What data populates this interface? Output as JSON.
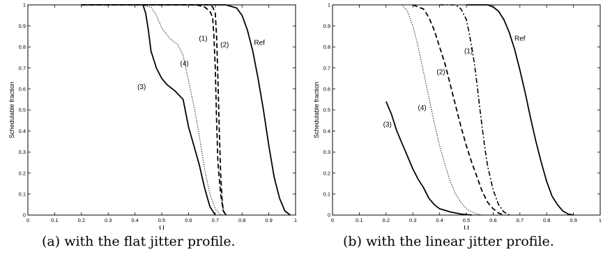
{
  "chart_data": [
    {
      "type": "line",
      "caption": "(a) with the flat jitter profile.",
      "xlabel": "U",
      "ylabel": "Schedulable fraction",
      "xlim": [
        0,
        1
      ],
      "ylim": [
        0,
        1
      ],
      "x_ticks": [
        "0",
        "0.1",
        "0.2",
        "0.3",
        "0.4",
        "0.5",
        "0.6",
        "0.7",
        "0.8",
        "0.9",
        "1"
      ],
      "y_ticks": [
        "0",
        "0.1",
        "0.2",
        "0.3",
        "0.4",
        "0.5",
        "0.6",
        "0.7",
        "0.8",
        "0.9",
        "1"
      ],
      "grid": false,
      "series": [
        {
          "name": "Ref",
          "style": "solid",
          "x": [
            0.2,
            0.74,
            0.78,
            0.8,
            0.82,
            0.84,
            0.86,
            0.88,
            0.9,
            0.92,
            0.94,
            0.96,
            0.98
          ],
          "y": [
            1,
            1,
            0.985,
            0.95,
            0.88,
            0.78,
            0.65,
            0.5,
            0.33,
            0.18,
            0.08,
            0.02,
            0
          ],
          "label": {
            "text": "Ref",
            "x": 0.865,
            "y": 0.81
          }
        },
        {
          "name": "(1)",
          "style": "dashed",
          "x": [
            0.2,
            0.63,
            0.66,
            0.68,
            0.69,
            0.695,
            0.7,
            0.705,
            0.71,
            0.72,
            0.73,
            0.74
          ],
          "y": [
            1,
            1,
            0.99,
            0.97,
            0.94,
            0.85,
            0.7,
            0.45,
            0.25,
            0.1,
            0.02,
            0
          ],
          "label": {
            "text": "(1)",
            "x": 0.655,
            "y": 0.83
          }
        },
        {
          "name": "(2)",
          "style": "dashed",
          "x": [
            0.2,
            0.68,
            0.69,
            0.7,
            0.705,
            0.71,
            0.715,
            0.72,
            0.725,
            0.73,
            0.74
          ],
          "y": [
            1,
            1,
            0.99,
            0.96,
            0.85,
            0.65,
            0.4,
            0.2,
            0.08,
            0.02,
            0
          ],
          "label": {
            "text": "(2)",
            "x": 0.735,
            "y": 0.8
          }
        },
        {
          "name": "(3)",
          "style": "solid",
          "x": [
            0.43,
            0.44,
            0.45,
            0.46,
            0.48,
            0.5,
            0.52,
            0.55,
            0.58,
            0.6,
            0.62,
            0.64,
            0.66,
            0.68,
            0.7
          ],
          "y": [
            1,
            0.96,
            0.88,
            0.78,
            0.7,
            0.65,
            0.62,
            0.59,
            0.55,
            0.42,
            0.33,
            0.24,
            0.13,
            0.04,
            0
          ],
          "label": {
            "text": "(3)",
            "x": 0.425,
            "y": 0.6
          }
        },
        {
          "name": "(4)",
          "style": "dotted",
          "x": [
            0.42,
            0.46,
            0.48,
            0.5,
            0.53,
            0.56,
            0.58,
            0.6,
            0.62,
            0.64,
            0.66,
            0.68,
            0.7,
            0.72
          ],
          "y": [
            1,
            0.99,
            0.95,
            0.89,
            0.84,
            0.81,
            0.76,
            0.64,
            0.52,
            0.38,
            0.22,
            0.1,
            0.03,
            0
          ],
          "label": {
            "text": "(4)",
            "x": 0.585,
            "y": 0.71
          }
        }
      ]
    },
    {
      "type": "line",
      "caption": "(b) with the linear jitter profile.",
      "xlabel": "U",
      "ylabel": "Schedulable fraction",
      "xlim": [
        0,
        1
      ],
      "ylim": [
        0,
        1
      ],
      "x_ticks": [
        "0",
        "0.1",
        "0.2",
        "0.3",
        "0.4",
        "0.5",
        "0.6",
        "0.7",
        "0.8",
        "0.9",
        "1"
      ],
      "y_ticks": [
        "0",
        "0.1",
        "0.2",
        "0.3",
        "0.4",
        "0.5",
        "0.6",
        "0.7",
        "0.8",
        "0.9",
        "1"
      ],
      "grid": false,
      "series": [
        {
          "name": "Ref",
          "style": "solid",
          "x": [
            0.5,
            0.58,
            0.6,
            0.62,
            0.64,
            0.66,
            0.68,
            0.7,
            0.72,
            0.74,
            0.76,
            0.78,
            0.8,
            0.82,
            0.84,
            0.86,
            0.88,
            0.9
          ],
          "y": [
            1,
            1,
            0.99,
            0.97,
            0.93,
            0.87,
            0.79,
            0.69,
            0.58,
            0.46,
            0.35,
            0.25,
            0.16,
            0.09,
            0.05,
            0.02,
            0.005,
            0
          ],
          "label": {
            "text": "Ref",
            "x": 0.7,
            "y": 0.83
          }
        },
        {
          "name": "(1)",
          "style": "dashdot",
          "x": [
            0.4,
            0.46,
            0.48,
            0.5,
            0.51,
            0.52,
            0.53,
            0.54,
            0.55,
            0.56,
            0.57,
            0.58,
            0.6,
            0.62,
            0.64,
            0.66
          ],
          "y": [
            1,
            1,
            0.98,
            0.93,
            0.87,
            0.8,
            0.72,
            0.62,
            0.51,
            0.41,
            0.31,
            0.23,
            0.12,
            0.05,
            0.015,
            0
          ],
          "label": {
            "text": "(1)",
            "x": 0.508,
            "y": 0.77
          }
        },
        {
          "name": "(2)",
          "style": "dashed",
          "x": [
            0.3,
            0.34,
            0.36,
            0.38,
            0.4,
            0.42,
            0.44,
            0.46,
            0.48,
            0.5,
            0.52,
            0.54,
            0.56,
            0.58,
            0.6,
            0.62,
            0.64
          ],
          "y": [
            1,
            0.98,
            0.94,
            0.88,
            0.8,
            0.72,
            0.62,
            0.52,
            0.42,
            0.33,
            0.25,
            0.18,
            0.11,
            0.06,
            0.03,
            0.01,
            0
          ],
          "label": {
            "text": "(2)",
            "x": 0.405,
            "y": 0.67
          }
        },
        {
          "name": "(3)",
          "style": "solid",
          "x": [
            0.2,
            0.22,
            0.24,
            0.26,
            0.28,
            0.3,
            0.32,
            0.34,
            0.36,
            0.38,
            0.4,
            0.44,
            0.48,
            0.52
          ],
          "y": [
            0.54,
            0.48,
            0.4,
            0.34,
            0.28,
            0.22,
            0.17,
            0.13,
            0.08,
            0.05,
            0.03,
            0.015,
            0.005,
            0
          ],
          "label": {
            "text": "(3)",
            "x": 0.205,
            "y": 0.42
          }
        },
        {
          "name": "(4)",
          "style": "dotted",
          "x": [
            0.26,
            0.28,
            0.3,
            0.32,
            0.34,
            0.36,
            0.38,
            0.4,
            0.42,
            0.44,
            0.46,
            0.48,
            0.5,
            0.52,
            0.54,
            0.56
          ],
          "y": [
            1,
            0.97,
            0.9,
            0.8,
            0.68,
            0.56,
            0.44,
            0.33,
            0.24,
            0.16,
            0.1,
            0.06,
            0.03,
            0.015,
            0.005,
            0
          ],
          "label": {
            "text": "(4)",
            "x": 0.335,
            "y": 0.5
          }
        }
      ]
    }
  ]
}
